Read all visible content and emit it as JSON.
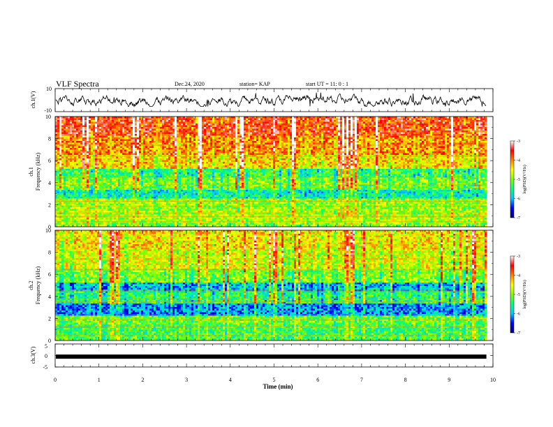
{
  "header": {
    "title": "VLF Spectra",
    "date": "Dec.24, 2020",
    "station": "station= KAP",
    "start": "start  UT =  11: 0  : 1"
  },
  "chart_data": [
    {
      "type": "line",
      "panel": "ch1-waveform",
      "ylabel": "ch.1(V)",
      "ylim": [
        -10,
        10
      ],
      "ytick_labels": [
        "10",
        "-10"
      ],
      "x_range_min": [
        0,
        9.85
      ],
      "description_values": {
        "mean": -0.3,
        "min": -5.5,
        "max": 6.5
      },
      "color": "#000000"
    },
    {
      "type": "heatmap",
      "panel": "ch1-spectrogram",
      "ylabel_lines": [
        "ch.1",
        "Frequency (kHz)"
      ],
      "ylim": [
        0,
        10
      ],
      "ytick_labels": [
        "0",
        "2",
        "4",
        "6",
        "8",
        "10"
      ],
      "x_range_min": [
        0,
        9.85
      ],
      "colorbar": {
        "label": "log(PSD)(V²/Hz)",
        "range": [
          -7,
          -3
        ],
        "tick_labels": [
          "-3",
          "-4",
          "-5",
          "-6",
          "-7"
        ],
        "colormap": [
          "#000080",
          "#0000ff",
          "#00c8ff",
          "#00ff80",
          "#80ff00",
          "#ffff00",
          "#ff8000",
          "#ff0000",
          "#ffffff"
        ]
      },
      "bands": [
        {
          "f": [
            0.0,
            0.4
          ],
          "lvl": -5.0
        },
        {
          "f": [
            0.4,
            1.6
          ],
          "lvl": -4.8
        },
        {
          "f": [
            1.6,
            2.6
          ],
          "lvl": -4.9
        },
        {
          "f": [
            2.6,
            3.4
          ],
          "lvl": -5.6
        },
        {
          "f": [
            3.4,
            4.6
          ],
          "lvl": -5.0
        },
        {
          "f": [
            4.6,
            5.3
          ],
          "lvl": -5.3
        },
        {
          "f": [
            5.3,
            6.6
          ],
          "lvl": -4.3
        },
        {
          "f": [
            6.6,
            8.4
          ],
          "lvl": -4.0
        },
        {
          "f": [
            8.4,
            10.0
          ],
          "lvl": -3.6
        }
      ]
    },
    {
      "type": "heatmap",
      "panel": "ch2-spectrogram",
      "ylabel_lines": [
        "ch.2",
        "Frequency (kHz)"
      ],
      "ylim": [
        0,
        10
      ],
      "ytick_labels": [
        "0",
        "2",
        "4",
        "6",
        "8",
        "10"
      ],
      "x_range_min": [
        0,
        9.85
      ],
      "colorbar": {
        "label": "log(PSD)(V²/Hz)",
        "range": [
          -7,
          -3
        ],
        "tick_labels": [
          "-3",
          "-4",
          "-5",
          "-6",
          "-7"
        ],
        "colormap": [
          "#000080",
          "#0000ff",
          "#00c8ff",
          "#00ff80",
          "#80ff00",
          "#ffff00",
          "#ff8000",
          "#ff0000",
          "#ffffff"
        ]
      },
      "bands": [
        {
          "f": [
            0.0,
            0.4
          ],
          "lvl": -5.2
        },
        {
          "f": [
            0.4,
            1.6
          ],
          "lvl": -5.3
        },
        {
          "f": [
            1.6,
            2.4
          ],
          "lvl": -5.1
        },
        {
          "f": [
            2.4,
            3.4
          ],
          "lvl": -6.1
        },
        {
          "f": [
            3.4,
            4.6
          ],
          "lvl": -5.4
        },
        {
          "f": [
            4.6,
            5.4
          ],
          "lvl": -5.9
        },
        {
          "f": [
            5.4,
            6.6
          ],
          "lvl": -5.0
        },
        {
          "f": [
            6.6,
            8.4
          ],
          "lvl": -4.6
        },
        {
          "f": [
            8.4,
            10.0
          ],
          "lvl": -4.4
        }
      ]
    },
    {
      "type": "line",
      "panel": "ch3-waveform",
      "ylabel": "ch.3(V)",
      "ylim": [
        -5,
        5
      ],
      "ytick_labels": [
        "5",
        "0",
        "-5"
      ],
      "x_range_min": [
        0,
        9.85
      ],
      "value": -0.5,
      "color": "#000000"
    }
  ],
  "xaxis": {
    "label": "Time (min)",
    "xlim": [
      0,
      10
    ],
    "tick_labels": [
      "0",
      "1",
      "2",
      "3",
      "4",
      "5",
      "6",
      "7",
      "8",
      "9",
      "10"
    ]
  }
}
